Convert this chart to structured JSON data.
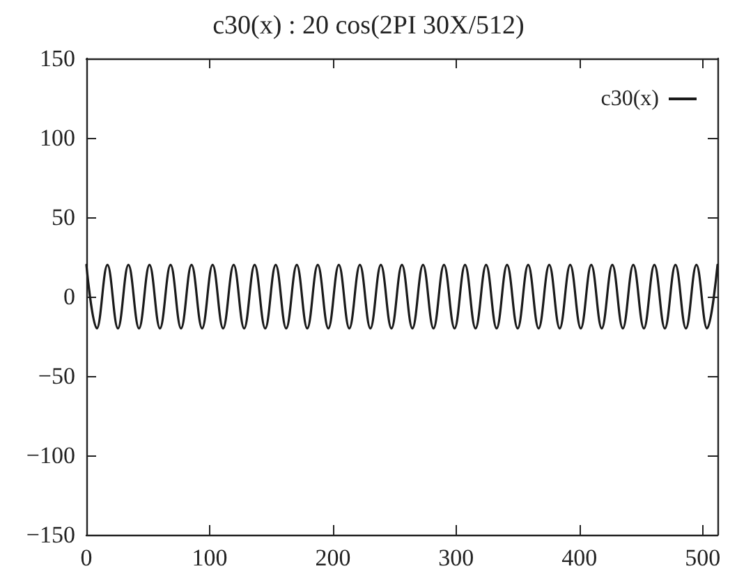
{
  "chart_data": {
    "type": "line",
    "title": "c30(x) : 20 cos(2PI 30X/512)",
    "x": [
      0,
      8.5,
      17.1,
      25.6,
      34.1,
      42.7,
      51.2,
      59.7,
      68.3,
      76.8,
      85.3,
      93.9,
      102.4,
      110.9,
      119.5,
      128,
      136.5,
      145.1,
      153.6,
      162.1,
      170.7,
      179.2,
      187.7,
      196.3,
      204.8,
      213.3,
      221.9,
      230.4,
      238.9,
      247.5,
      256,
      264.5,
      273.1,
      281.6,
      290.1,
      298.7,
      307.2,
      315.7,
      324.3,
      332.8,
      341.3,
      349.9,
      358.4,
      366.9,
      375.5,
      384,
      392.5,
      401.1,
      409.6,
      418.1,
      426.7,
      435.2,
      443.7,
      452.3,
      460.8,
      469.3,
      477.9,
      486.4,
      494.9,
      503.5,
      512
    ],
    "series": [
      {
        "name": "c30(x)",
        "color": "#1a1a1a",
        "values": [
          20,
          -20,
          20,
          -20,
          20,
          -20,
          20,
          -20,
          20,
          -20,
          20,
          -20,
          20,
          -20,
          20,
          -20,
          20,
          -20,
          20,
          -20,
          20,
          -20,
          20,
          -20,
          20,
          -20,
          20,
          -20,
          20,
          -20,
          20,
          -20,
          20,
          -20,
          20,
          -20,
          20,
          -20,
          20,
          -20,
          20,
          -20,
          20,
          -20,
          20,
          -20,
          20,
          -20,
          20,
          -20,
          20,
          -20,
          20,
          -20,
          20,
          -20,
          20,
          -20,
          20,
          -20,
          20
        ]
      }
    ],
    "xlim": [
      0,
      512
    ],
    "xticks": [
      0,
      100,
      200,
      300,
      400,
      500
    ],
    "ylim": [
      -150,
      150
    ],
    "yticks": [
      -150,
      -100,
      -50,
      0,
      50,
      100,
      150
    ],
    "legend": "top right",
    "grid": false,
    "marker": "none",
    "line_style": "solid"
  }
}
